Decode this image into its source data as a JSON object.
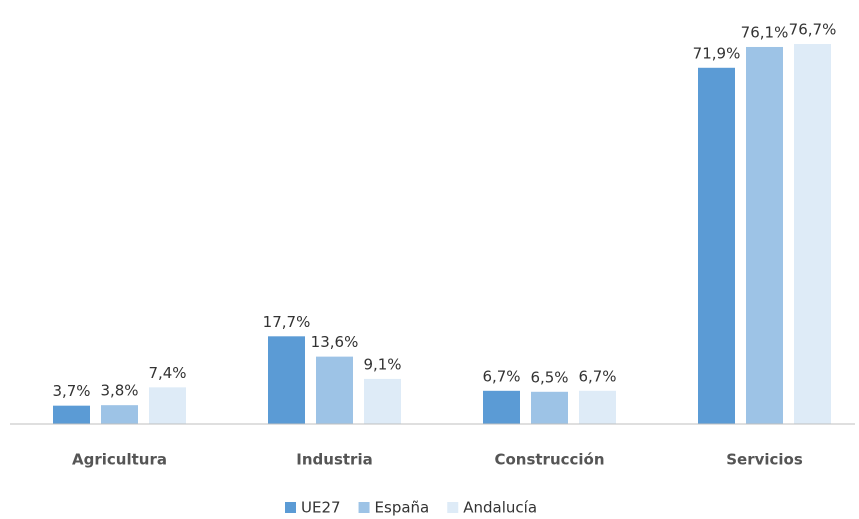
{
  "chart_data": {
    "type": "bar",
    "categories": [
      "Agricultura",
      "Industria",
      "Construcción",
      "Servicios"
    ],
    "series": [
      {
        "name": "UE27",
        "color": "#5b9bd5",
        "values": [
          3.7,
          17.7,
          6.7,
          71.9
        ],
        "value_labels": [
          "3,7%",
          "17,7%",
          "6,7%",
          "71,9%"
        ]
      },
      {
        "name": "España",
        "color": "#9dc3e6",
        "values": [
          3.8,
          13.6,
          6.5,
          76.1
        ],
        "value_labels": [
          "3,8%",
          "13,6%",
          "6,5%",
          "76,1%"
        ]
      },
      {
        "name": "Andalucía",
        "color": "#deebf7",
        "values": [
          7.4,
          9.1,
          6.7,
          76.7
        ],
        "value_labels": [
          "7,4%",
          "9,1%",
          "6,7%",
          "76,7%"
        ]
      }
    ],
    "legend": "bottom"
  }
}
